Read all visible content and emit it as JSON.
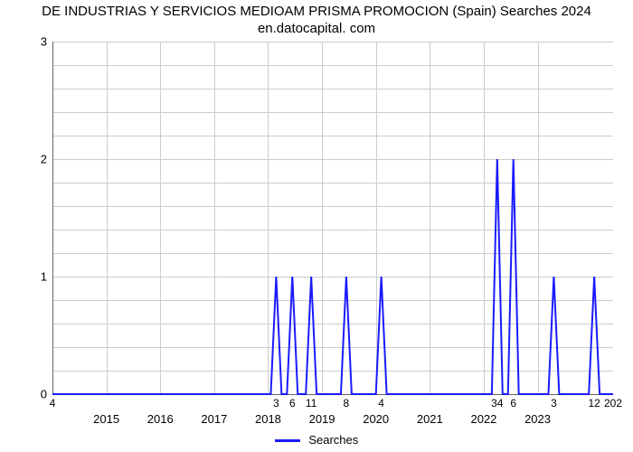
{
  "chart": {
    "type": "line",
    "title": "DE INDUSTRIAS Y SERVICIOS MEDIOAM PRISMA PROMOCION (Spain) Searches 2024 en.datocapital.\ncom",
    "title_fontsize": 15,
    "background_color": "#ffffff",
    "grid_color": "#cccccc",
    "axis_color": "#666666",
    "series_color": "#1a1aff",
    "series_width": 2,
    "ylim": [
      0,
      3
    ],
    "ytick_step": 1,
    "yticks": [
      0,
      1,
      2,
      3
    ],
    "xlim": [
      2014.0,
      2024.4
    ],
    "xticks_years": [
      2015,
      2016,
      2017,
      2018,
      2019,
      2020,
      2021,
      2022,
      2023
    ],
    "legend_label": "Searches",
    "point_labels": [
      {
        "x": 2014.0,
        "text": "4"
      },
      {
        "x": 2018.15,
        "text": "3"
      },
      {
        "x": 2018.45,
        "text": "6"
      },
      {
        "x": 2018.8,
        "text": "11"
      },
      {
        "x": 2019.45,
        "text": "8"
      },
      {
        "x": 2020.1,
        "text": "4"
      },
      {
        "x": 2022.25,
        "text": "34"
      },
      {
        "x": 2022.55,
        "text": "6"
      },
      {
        "x": 2023.3,
        "text": "3"
      },
      {
        "x": 2024.05,
        "text": "12"
      },
      {
        "x": 2024.4,
        "text": "202"
      }
    ],
    "points": [
      {
        "x": 2014.0,
        "y": 0
      },
      {
        "x": 2018.05,
        "y": 0
      },
      {
        "x": 2018.15,
        "y": 1
      },
      {
        "x": 2018.25,
        "y": 0
      },
      {
        "x": 2018.35,
        "y": 0
      },
      {
        "x": 2018.45,
        "y": 1
      },
      {
        "x": 2018.55,
        "y": 0
      },
      {
        "x": 2018.7,
        "y": 0
      },
      {
        "x": 2018.8,
        "y": 1
      },
      {
        "x": 2018.9,
        "y": 0
      },
      {
        "x": 2019.35,
        "y": 0
      },
      {
        "x": 2019.45,
        "y": 1
      },
      {
        "x": 2019.55,
        "y": 0
      },
      {
        "x": 2020.0,
        "y": 0
      },
      {
        "x": 2020.1,
        "y": 1
      },
      {
        "x": 2020.2,
        "y": 0
      },
      {
        "x": 2022.15,
        "y": 0
      },
      {
        "x": 2022.25,
        "y": 2
      },
      {
        "x": 2022.35,
        "y": 0
      },
      {
        "x": 2022.45,
        "y": 0
      },
      {
        "x": 2022.55,
        "y": 2
      },
      {
        "x": 2022.65,
        "y": 0
      },
      {
        "x": 2023.2,
        "y": 0
      },
      {
        "x": 2023.3,
        "y": 1
      },
      {
        "x": 2023.4,
        "y": 0
      },
      {
        "x": 2023.95,
        "y": 0
      },
      {
        "x": 2024.05,
        "y": 1
      },
      {
        "x": 2024.15,
        "y": 0
      },
      {
        "x": 2024.4,
        "y": 0
      }
    ]
  }
}
